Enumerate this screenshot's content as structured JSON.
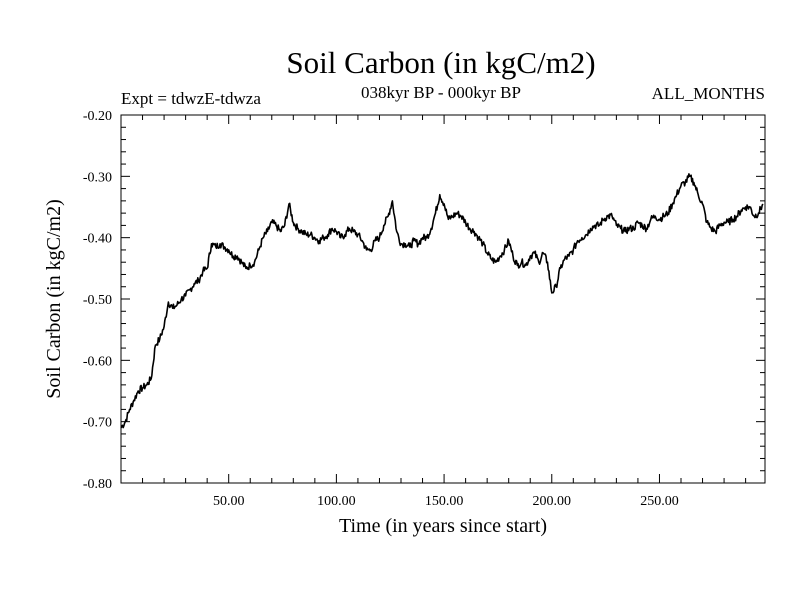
{
  "chart_data": {
    "type": "line",
    "title": "Soil Carbon (in kgC/m2)",
    "subtitle": "038kyr BP - 000kyr BP",
    "left_note": "Expt = tdwzE-tdwza",
    "right_note": "ALL_MONTHS",
    "xlabel": "Time (in years since start)",
    "ylabel": "Soil Carbon (in kgC/m2)",
    "xlim": [
      0,
      299
    ],
    "ylim": [
      -0.8,
      -0.2
    ],
    "x_ticks": [
      50,
      100,
      150,
      200,
      250
    ],
    "x_tick_labels": [
      "50.00",
      "100.00",
      "150.00",
      "200.00",
      "250.00"
    ],
    "y_ticks": [
      -0.2,
      -0.3,
      -0.4,
      -0.5,
      -0.6,
      -0.7,
      -0.8
    ],
    "y_tick_labels": [
      "-0.20",
      "-0.30",
      "-0.40",
      "-0.50",
      "-0.60",
      "-0.70",
      "-0.80"
    ],
    "grid": false,
    "line_color": "#000000",
    "series": [
      {
        "x": [
          0,
          2,
          4,
          6,
          8,
          10,
          12,
          14,
          16,
          18,
          20,
          22,
          24,
          26,
          28,
          30,
          32,
          34,
          36,
          38,
          40,
          42,
          44,
          46,
          48,
          50,
          52,
          54,
          56,
          58,
          60,
          62,
          64,
          66,
          68,
          70,
          72,
          74,
          76,
          78,
          80,
          82,
          84,
          86,
          88,
          90,
          92,
          94,
          96,
          98,
          100,
          102,
          104,
          106,
          108,
          110,
          112,
          114,
          116,
          118,
          120,
          122,
          124,
          126,
          128,
          130,
          132,
          134,
          136,
          138,
          140,
          142,
          144,
          146,
          148,
          150,
          152,
          154,
          156,
          158,
          160,
          162,
          164,
          166,
          168,
          170,
          172,
          174,
          176,
          178,
          180,
          182,
          184,
          186,
          188,
          190,
          192,
          194,
          196,
          198,
          200,
          202,
          204,
          206,
          208,
          210,
          212,
          214,
          216,
          218,
          220,
          222,
          224,
          226,
          228,
          230,
          232,
          234,
          236,
          238,
          240,
          242,
          244,
          246,
          248,
          250,
          252,
          254,
          256,
          258,
          260,
          262,
          264,
          266,
          268,
          270,
          272,
          274,
          276,
          278,
          280,
          282,
          284,
          286,
          288,
          290,
          292,
          294,
          296,
          298
        ],
        "y": [
          -0.71,
          -0.7,
          -0.68,
          -0.665,
          -0.65,
          -0.645,
          -0.64,
          -0.63,
          -0.575,
          -0.565,
          -0.545,
          -0.505,
          -0.515,
          -0.51,
          -0.5,
          -0.495,
          -0.485,
          -0.475,
          -0.47,
          -0.455,
          -0.45,
          -0.41,
          -0.415,
          -0.41,
          -0.415,
          -0.42,
          -0.43,
          -0.43,
          -0.44,
          -0.45,
          -0.445,
          -0.44,
          -0.42,
          -0.4,
          -0.39,
          -0.375,
          -0.38,
          -0.39,
          -0.38,
          -0.345,
          -0.375,
          -0.385,
          -0.39,
          -0.395,
          -0.395,
          -0.4,
          -0.405,
          -0.4,
          -0.395,
          -0.385,
          -0.39,
          -0.4,
          -0.395,
          -0.385,
          -0.39,
          -0.395,
          -0.405,
          -0.42,
          -0.42,
          -0.405,
          -0.4,
          -0.38,
          -0.365,
          -0.34,
          -0.39,
          -0.41,
          -0.41,
          -0.415,
          -0.405,
          -0.41,
          -0.4,
          -0.4,
          -0.385,
          -0.36,
          -0.33,
          -0.345,
          -0.37,
          -0.365,
          -0.36,
          -0.365,
          -0.375,
          -0.385,
          -0.39,
          -0.4,
          -0.41,
          -0.425,
          -0.435,
          -0.44,
          -0.43,
          -0.42,
          -0.405,
          -0.43,
          -0.445,
          -0.44,
          -0.445,
          -0.43,
          -0.425,
          -0.44,
          -0.425,
          -0.44,
          -0.49,
          -0.48,
          -0.45,
          -0.435,
          -0.43,
          -0.42,
          -0.405,
          -0.4,
          -0.395,
          -0.385,
          -0.38,
          -0.38,
          -0.37,
          -0.365,
          -0.365,
          -0.38,
          -0.385,
          -0.39,
          -0.385,
          -0.385,
          -0.375,
          -0.38,
          -0.385,
          -0.37,
          -0.365,
          -0.37,
          -0.365,
          -0.36,
          -0.345,
          -0.33,
          -0.315,
          -0.31,
          -0.3,
          -0.31,
          -0.33,
          -0.345,
          -0.375,
          -0.385,
          -0.39,
          -0.38,
          -0.375,
          -0.375,
          -0.37,
          -0.365,
          -0.355,
          -0.35,
          -0.35,
          -0.365,
          -0.36,
          -0.345
        ]
      }
    ]
  }
}
